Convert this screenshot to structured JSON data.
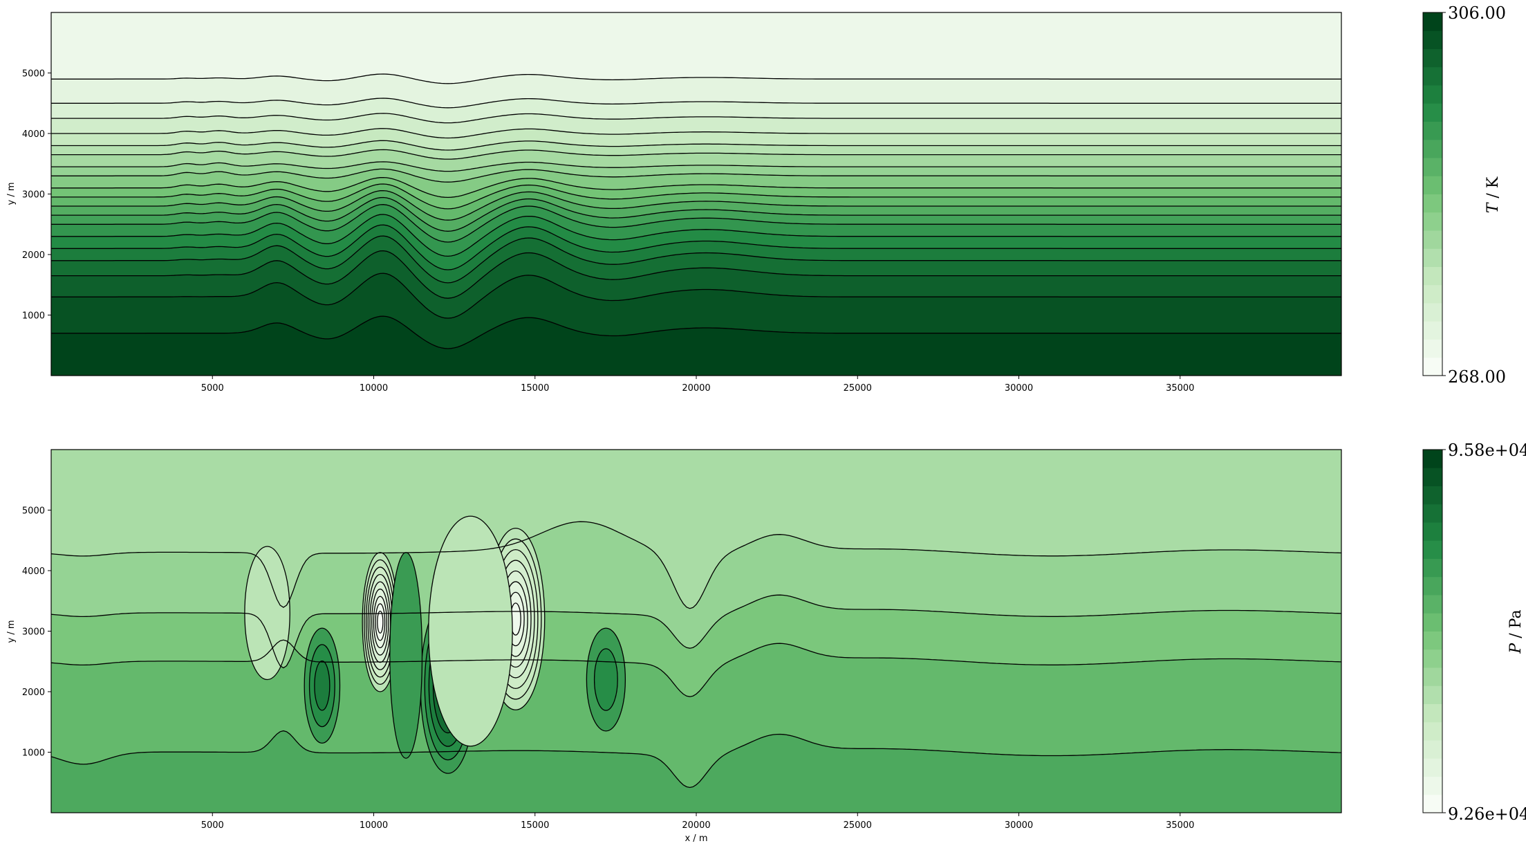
{
  "chart_data": [
    {
      "type": "contour",
      "panel": "top",
      "xlabel": "",
      "ylabel": "y / m",
      "xlim": [
        0,
        40000
      ],
      "ylim": [
        0,
        6000
      ],
      "xticks": [
        "5000",
        "10000",
        "15000",
        "20000",
        "25000",
        "30000",
        "35000"
      ],
      "yticks": [
        "1000",
        "2000",
        "3000",
        "4000",
        "5000"
      ],
      "colorbar": {
        "label_sym": "T",
        "label_unit": " / K",
        "min": "268.00",
        "max": "306.00",
        "levels": 20
      },
      "colormap": [
        "#f7fcf5",
        "#00441b"
      ],
      "contour_base_heights": [
        700,
        1300,
        1650,
        1900,
        2100,
        2300,
        2500,
        2650,
        2800,
        2950,
        3100,
        3300,
        3450,
        3650,
        3800,
        4000,
        4250,
        4500,
        4900
      ]
    },
    {
      "type": "contour",
      "panel": "bottom",
      "xlabel": "x / m",
      "ylabel": "y / m",
      "xlim": [
        0,
        40000
      ],
      "ylim": [
        0,
        6000
      ],
      "xticks": [
        "5000",
        "10000",
        "15000",
        "20000",
        "25000",
        "30000",
        "35000"
      ],
      "yticks": [
        "1000",
        "2000",
        "3000",
        "4000",
        "5000"
      ],
      "colorbar": {
        "label_sym": "P",
        "label_unit": " / Pa",
        "min": "9.26e+04",
        "max": "9.58e+04",
        "levels": 20
      },
      "colormap": [
        "#f7fcf5",
        "#00441b"
      ],
      "contour_base_heights": [
        1000,
        2500,
        3300,
        4300
      ]
    }
  ]
}
